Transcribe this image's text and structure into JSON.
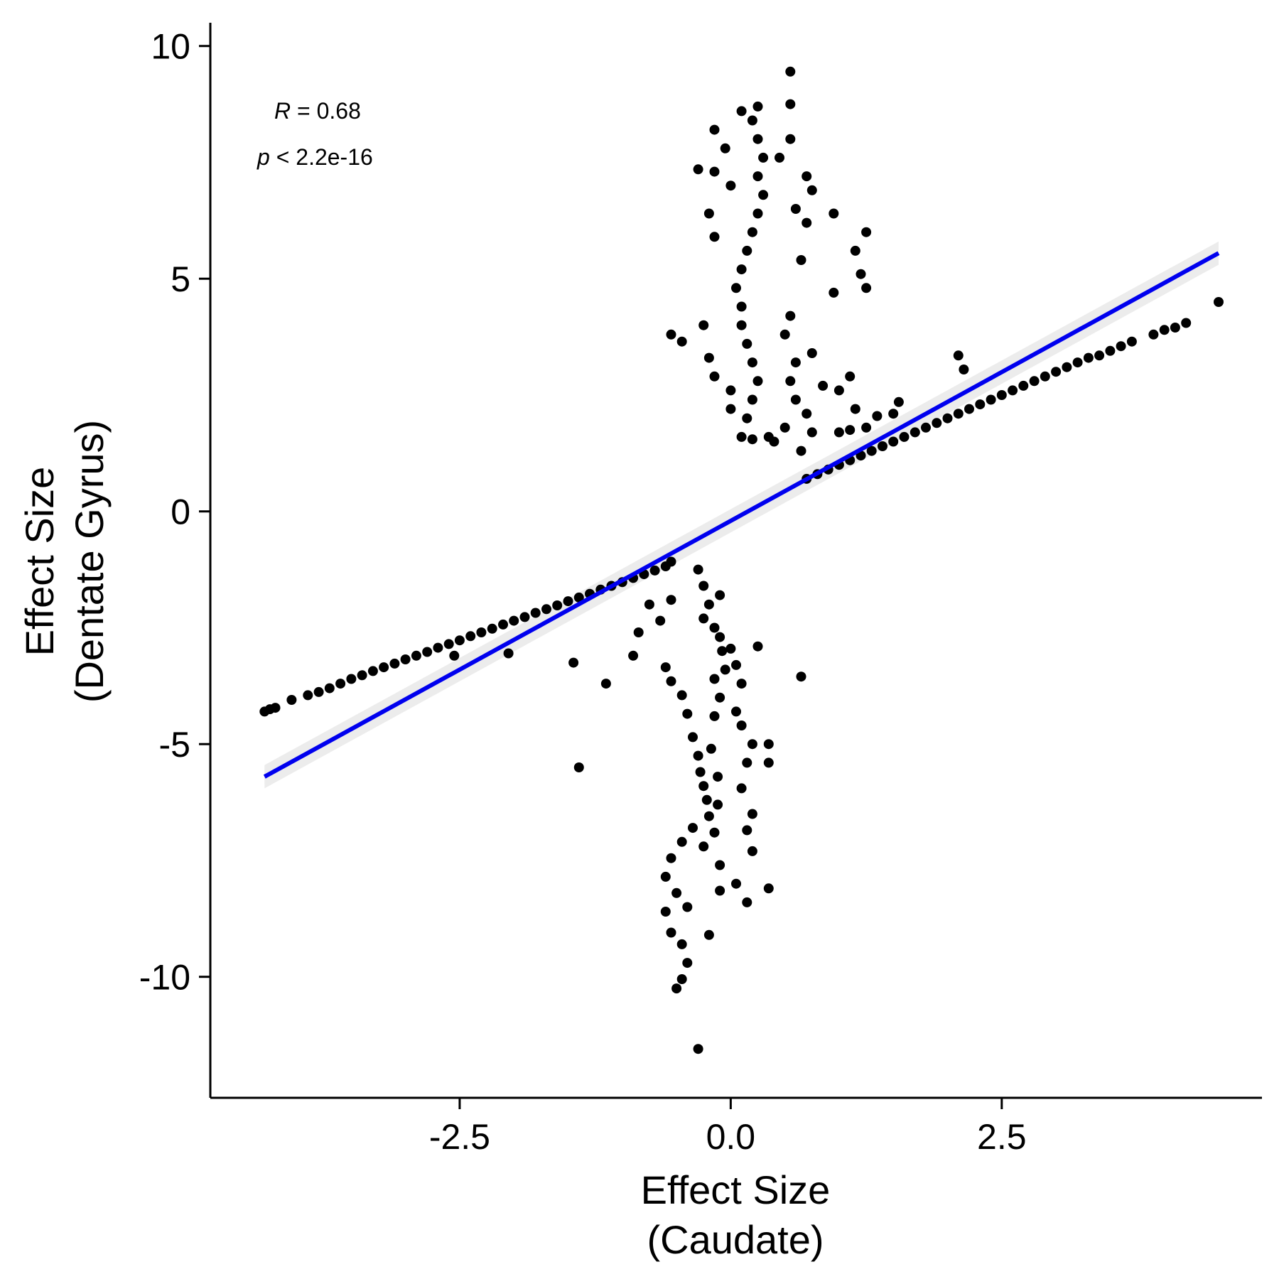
{
  "chart_data": {
    "type": "scatter",
    "title": "",
    "xlabel_line1": "Effect Size",
    "xlabel_line2": "(Caudate)",
    "ylabel_line1": "Effect Size",
    "ylabel_line2": "(Dentate Gyrus)",
    "xlim": [
      -4.8,
      4.9
    ],
    "ylim": [
      -12.6,
      10.5
    ],
    "xticks": [
      -2.5,
      0.0,
      2.5
    ],
    "xtick_labels": [
      "-2.5",
      "0.0",
      "2.5"
    ],
    "yticks": [
      -10,
      -5,
      0,
      5,
      10
    ],
    "ytick_labels": [
      "-10",
      "-5",
      "0",
      "5",
      "10"
    ],
    "grid": false,
    "annotation": {
      "r_symbol": "R",
      "r_text": " = 0.68",
      "p_symbol": "p",
      "p_text": " < 2.2e-16"
    },
    "regression": {
      "x": [
        -4.3,
        4.5
      ],
      "y": [
        -5.7,
        5.55
      ],
      "color": "#0000ee",
      "ci_halfwidth": 0.25
    },
    "point_color": "#000000",
    "points": [
      [
        -4.3,
        -4.3
      ],
      [
        -4.25,
        -4.25
      ],
      [
        -4.2,
        -4.22
      ],
      [
        -4.05,
        -4.05
      ],
      [
        -3.9,
        -3.95
      ],
      [
        -3.8,
        -3.88
      ],
      [
        -3.7,
        -3.8
      ],
      [
        -3.6,
        -3.7
      ],
      [
        -3.5,
        -3.6
      ],
      [
        -3.4,
        -3.52
      ],
      [
        -3.3,
        -3.43
      ],
      [
        -3.2,
        -3.35
      ],
      [
        -3.1,
        -3.27
      ],
      [
        -3.0,
        -3.18
      ],
      [
        -2.9,
        -3.1
      ],
      [
        -2.8,
        -3.02
      ],
      [
        -2.7,
        -2.93
      ],
      [
        -2.6,
        -2.85
      ],
      [
        -2.5,
        -2.77
      ],
      [
        -2.4,
        -2.68
      ],
      [
        -2.3,
        -2.6
      ],
      [
        -2.2,
        -2.52
      ],
      [
        -2.1,
        -2.43
      ],
      [
        -2.0,
        -2.35
      ],
      [
        -1.9,
        -2.27
      ],
      [
        -1.8,
        -2.18
      ],
      [
        -1.7,
        -2.1
      ],
      [
        -1.6,
        -2.02
      ],
      [
        -1.5,
        -1.93
      ],
      [
        -1.4,
        -1.85
      ],
      [
        -1.3,
        -1.77
      ],
      [
        -1.2,
        -1.68
      ],
      [
        -1.1,
        -1.6
      ],
      [
        -1.0,
        -1.52
      ],
      [
        -0.9,
        -1.43
      ],
      [
        -0.8,
        -1.35
      ],
      [
        -0.7,
        -1.27
      ],
      [
        -0.6,
        -1.18
      ],
      [
        -0.55,
        -1.08
      ],
      [
        -2.55,
        -3.1
      ],
      [
        -2.05,
        -3.05
      ],
      [
        -1.45,
        -3.25
      ],
      [
        -1.15,
        -3.7
      ],
      [
        -0.9,
        -3.1
      ],
      [
        -0.85,
        -2.6
      ],
      [
        -0.75,
        -2.0
      ],
      [
        -1.4,
        -5.5
      ],
      [
        -0.65,
        -2.35
      ],
      [
        -0.55,
        -1.9
      ],
      [
        -0.6,
        -3.35
      ],
      [
        -0.55,
        -3.65
      ],
      [
        -0.45,
        -3.95
      ],
      [
        -0.4,
        -4.35
      ],
      [
        -0.35,
        -4.85
      ],
      [
        -0.3,
        -5.25
      ],
      [
        -0.28,
        -5.6
      ],
      [
        -0.25,
        -5.9
      ],
      [
        -0.22,
        -6.2
      ],
      [
        -0.2,
        -6.55
      ],
      [
        -0.35,
        -6.8
      ],
      [
        -0.45,
        -7.1
      ],
      [
        -0.55,
        -7.45
      ],
      [
        -0.6,
        -7.85
      ],
      [
        -0.5,
        -8.2
      ],
      [
        -0.4,
        -8.5
      ],
      [
        -0.6,
        -8.6
      ],
      [
        -0.55,
        -9.05
      ],
      [
        -0.45,
        -9.3
      ],
      [
        -0.4,
        -9.7
      ],
      [
        -0.45,
        -10.05
      ],
      [
        -0.5,
        -10.25
      ],
      [
        -0.3,
        -11.55
      ],
      [
        -0.2,
        -9.1
      ],
      [
        -0.1,
        -8.15
      ],
      [
        0.05,
        -8.0
      ],
      [
        0.15,
        -8.4
      ],
      [
        0.35,
        -8.1
      ],
      [
        0.2,
        -7.3
      ],
      [
        0.15,
        -6.85
      ],
      [
        0.2,
        -6.5
      ],
      [
        0.1,
        -5.95
      ],
      [
        0.15,
        -5.4
      ],
      [
        0.2,
        -5.0
      ],
      [
        0.35,
        -5.4
      ],
      [
        0.35,
        -5.0
      ],
      [
        0.1,
        -4.6
      ],
      [
        0.05,
        -4.3
      ],
      [
        -0.1,
        -4.0
      ],
      [
        0.1,
        -3.7
      ],
      [
        0.05,
        -3.3
      ],
      [
        0.0,
        -2.95
      ],
      [
        0.25,
        -2.9
      ],
      [
        0.65,
        -3.55
      ],
      [
        -0.15,
        -2.5
      ],
      [
        -0.2,
        -2.0
      ],
      [
        -0.25,
        -1.6
      ],
      [
        -0.3,
        -1.25
      ],
      [
        -0.25,
        -2.3
      ],
      [
        -0.15,
        -3.6
      ],
      [
        -0.15,
        -4.4
      ],
      [
        -0.18,
        -5.1
      ],
      [
        -0.12,
        -5.7
      ],
      [
        -0.12,
        -6.3
      ],
      [
        -0.15,
        -6.9
      ],
      [
        -0.25,
        -7.2
      ],
      [
        -0.1,
        -7.6
      ],
      [
        -0.08,
        -3.0
      ],
      [
        -0.05,
        -3.4
      ],
      [
        -0.1,
        -2.7
      ],
      [
        -0.1,
        -1.8
      ],
      [
        0.1,
        1.6
      ],
      [
        0.15,
        2.0
      ],
      [
        0.2,
        2.4
      ],
      [
        0.25,
        2.8
      ],
      [
        0.2,
        3.2
      ],
      [
        0.15,
        3.6
      ],
      [
        0.1,
        4.0
      ],
      [
        0.1,
        4.4
      ],
      [
        0.05,
        4.8
      ],
      [
        0.1,
        5.2
      ],
      [
        0.15,
        5.6
      ],
      [
        0.2,
        6.0
      ],
      [
        0.25,
        6.4
      ],
      [
        0.3,
        6.8
      ],
      [
        0.25,
        7.2
      ],
      [
        0.3,
        7.6
      ],
      [
        0.25,
        8.0
      ],
      [
        0.2,
        8.4
      ],
      [
        0.1,
        8.6
      ],
      [
        0.25,
        8.7
      ],
      [
        0.55,
        8.75
      ],
      [
        0.55,
        9.45
      ],
      [
        -0.15,
        8.2
      ],
      [
        -0.05,
        7.8
      ],
      [
        -0.3,
        7.35
      ],
      [
        -0.15,
        7.3
      ],
      [
        0.0,
        7.0
      ],
      [
        -0.2,
        6.4
      ],
      [
        -0.15,
        5.9
      ],
      [
        0.45,
        7.6
      ],
      [
        0.55,
        8.0
      ],
      [
        0.7,
        7.2
      ],
      [
        0.75,
        6.9
      ],
      [
        0.6,
        6.5
      ],
      [
        0.7,
        6.2
      ],
      [
        0.95,
        6.4
      ],
      [
        1.25,
        6.0
      ],
      [
        1.15,
        5.6
      ],
      [
        1.2,
        5.1
      ],
      [
        1.25,
        4.8
      ],
      [
        0.95,
        4.7
      ],
      [
        0.65,
        5.4
      ],
      [
        0.55,
        4.2
      ],
      [
        0.5,
        3.8
      ],
      [
        0.75,
        3.4
      ],
      [
        0.6,
        3.2
      ],
      [
        0.55,
        2.8
      ],
      [
        0.6,
        2.4
      ],
      [
        0.7,
        2.1
      ],
      [
        0.5,
        1.8
      ],
      [
        0.4,
        1.5
      ],
      [
        0.2,
        1.55
      ],
      [
        -0.55,
        3.8
      ],
      [
        -0.45,
        3.65
      ],
      [
        -0.25,
        4.0
      ],
      [
        -0.2,
        3.3
      ],
      [
        -0.15,
        2.9
      ],
      [
        0.0,
        2.6
      ],
      [
        0.0,
        2.2
      ],
      [
        0.35,
        1.6
      ],
      [
        0.75,
        1.7
      ],
      [
        0.65,
        1.3
      ],
      [
        0.85,
        2.7
      ],
      [
        1.0,
        2.6
      ],
      [
        1.1,
        2.9
      ],
      [
        1.15,
        2.2
      ],
      [
        1.25,
        1.8
      ],
      [
        1.35,
        2.05
      ],
      [
        1.55,
        2.35
      ],
      [
        1.0,
        1.7
      ],
      [
        1.1,
        1.75
      ],
      [
        1.5,
        2.1
      ],
      [
        2.1,
        3.35
      ],
      [
        2.15,
        3.05
      ],
      [
        0.7,
        0.7
      ],
      [
        0.8,
        0.8
      ],
      [
        0.9,
        0.9
      ],
      [
        1.0,
        1.0
      ],
      [
        1.1,
        1.1
      ],
      [
        1.2,
        1.2
      ],
      [
        1.3,
        1.3
      ],
      [
        1.4,
        1.4
      ],
      [
        1.5,
        1.5
      ],
      [
        1.6,
        1.6
      ],
      [
        1.7,
        1.7
      ],
      [
        1.8,
        1.8
      ],
      [
        1.9,
        1.9
      ],
      [
        2.0,
        2.0
      ],
      [
        2.1,
        2.1
      ],
      [
        2.2,
        2.2
      ],
      [
        2.3,
        2.3
      ],
      [
        2.4,
        2.4
      ],
      [
        2.5,
        2.5
      ],
      [
        2.6,
        2.6
      ],
      [
        2.7,
        2.7
      ],
      [
        2.8,
        2.8
      ],
      [
        2.9,
        2.9
      ],
      [
        3.0,
        3.0
      ],
      [
        3.1,
        3.1
      ],
      [
        3.2,
        3.2
      ],
      [
        3.3,
        3.3
      ],
      [
        3.4,
        3.35
      ],
      [
        3.5,
        3.45
      ],
      [
        3.6,
        3.55
      ],
      [
        3.7,
        3.65
      ],
      [
        3.9,
        3.8
      ],
      [
        4.0,
        3.9
      ],
      [
        4.1,
        3.95
      ],
      [
        4.2,
        4.05
      ],
      [
        4.5,
        4.5
      ]
    ]
  }
}
